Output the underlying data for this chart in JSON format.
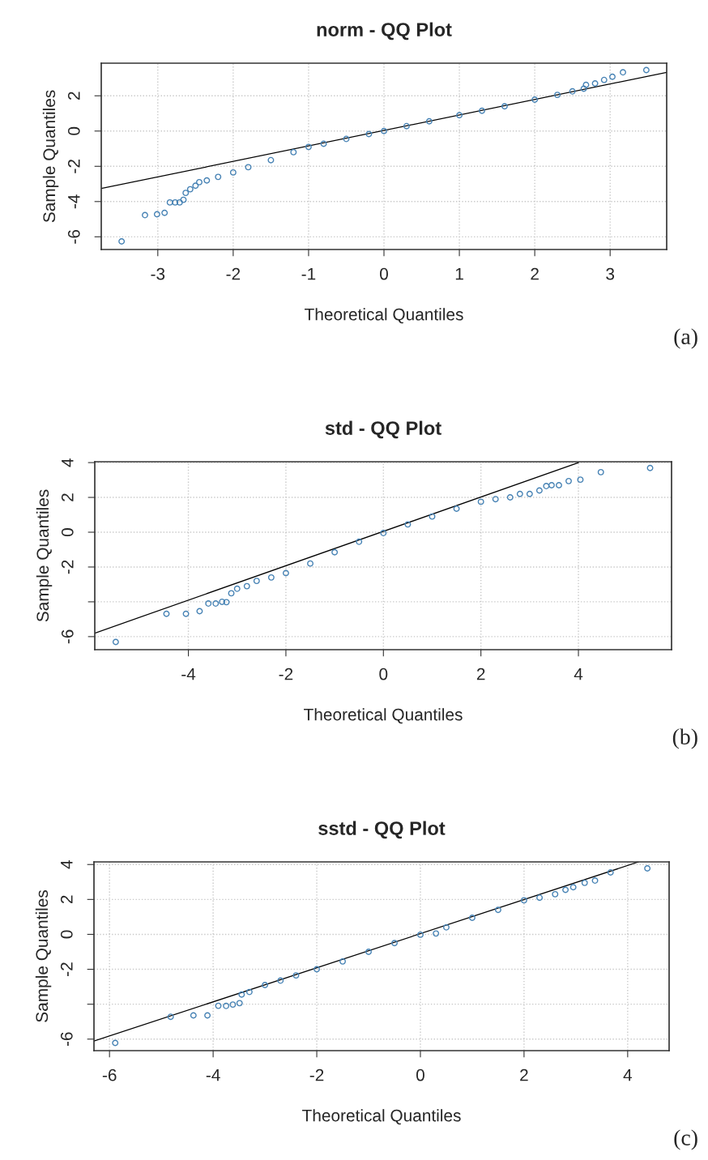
{
  "chart_data": [
    {
      "type": "scatter",
      "title": "norm - QQ Plot",
      "xlabel": "Theoretical Quantiles",
      "ylabel": "Sample Quantiles",
      "annotations": [
        "(a)"
      ],
      "xlim": [
        -3.75,
        3.75
      ],
      "ylim": [
        -6.72,
        3.85
      ],
      "xticks": [
        -3,
        -2,
        -1,
        0,
        1,
        2,
        3
      ],
      "yticks": [
        -6,
        -4,
        -2,
        0,
        2
      ],
      "grid": true,
      "series": [
        {
          "marker": "circle",
          "color": "#4682b4",
          "x": [
            -3.48,
            -3.17,
            -3.01,
            -2.91,
            -2.84,
            -2.77,
            -2.71,
            -2.66,
            -2.63,
            -2.57,
            -2.5,
            -2.45,
            -2.35,
            -2.2,
            -2.0,
            -1.8,
            -1.5,
            -1.2,
            -1.0,
            -0.8,
            -0.5,
            -0.2,
            0,
            0.3,
            0.6,
            1.0,
            1.3,
            1.6,
            2.0,
            2.3,
            2.5,
            2.65,
            2.68,
            2.8,
            2.92,
            3.03,
            3.17,
            3.48
          ],
          "values": [
            -6.26,
            -4.77,
            -4.72,
            -4.64,
            -4.05,
            -4.05,
            -4.05,
            -3.9,
            -3.51,
            -3.3,
            -3.1,
            -2.9,
            -2.8,
            -2.6,
            -2.35,
            -2.05,
            -1.65,
            -1.2,
            -0.9,
            -0.72,
            -0.45,
            -0.17,
            0,
            0.28,
            0.55,
            0.9,
            1.15,
            1.4,
            1.78,
            2.05,
            2.25,
            2.4,
            2.62,
            2.7,
            2.9,
            3.08,
            3.33,
            3.46
          ]
        },
        {
          "type": "line",
          "color": "#000000",
          "x": [
            -3.75,
            3.75
          ],
          "values": [
            -3.26,
            3.33
          ]
        }
      ]
    },
    {
      "type": "scatter",
      "title": "std - QQ Plot",
      "xlabel": "Theoretical Quantiles",
      "ylabel": "Sample Quantiles",
      "annotations": [
        "(b)"
      ],
      "xlim": [
        -5.92,
        5.91
      ],
      "ylim": [
        -6.75,
        4.05
      ],
      "xticks": [
        -4,
        -2,
        0,
        2,
        4
      ],
      "yticks": [
        -6,
        {
          "value": -4,
          "label": null
        },
        -2,
        0,
        2,
        4
      ],
      "grid": true,
      "series": [
        {
          "marker": "circle",
          "color": "#4682b4",
          "x": [
            -5.49,
            -4.45,
            -4.05,
            -3.77,
            -3.59,
            -3.44,
            -3.31,
            -3.22,
            -3.12,
            -3.0,
            -2.8,
            -2.6,
            -2.3,
            -2.0,
            -1.5,
            -1.0,
            -0.5,
            0,
            0.5,
            1.0,
            1.5,
            2.0,
            2.3,
            2.6,
            2.8,
            3.0,
            3.2,
            3.34,
            3.45,
            3.6,
            3.8,
            4.04,
            4.46,
            5.47
          ],
          "values": [
            -6.31,
            -4.69,
            -4.69,
            -4.54,
            -4.1,
            -4.1,
            -4.0,
            -4.02,
            -3.51,
            -3.25,
            -3.1,
            -2.8,
            -2.6,
            -2.35,
            -1.8,
            -1.15,
            -0.55,
            -0.05,
            0.45,
            0.9,
            1.35,
            1.75,
            1.9,
            2.0,
            2.2,
            2.2,
            2.4,
            2.65,
            2.7,
            2.7,
            2.94,
            3.02,
            3.45,
            3.69
          ]
        },
        {
          "type": "line",
          "color": "#000000",
          "x": [
            -5.92,
            4.0
          ],
          "values": [
            -5.8,
            4.0
          ]
        }
      ]
    },
    {
      "type": "scatter",
      "title": "sstd - QQ Plot",
      "xlabel": "Theoretical Quantiles",
      "ylabel": "Sample Quantiles",
      "annotations": [
        "(c)"
      ],
      "xlim": [
        -6.3,
        4.8
      ],
      "ylim": [
        -6.66,
        4.15
      ],
      "xticks": [
        -6,
        -4,
        -2,
        0,
        2,
        4
      ],
      "yticks": [
        -6,
        {
          "value": -4,
          "label": null
        },
        -2,
        0,
        2,
        4
      ],
      "grid": true,
      "series": [
        {
          "marker": "circle",
          "color": "#4682b4",
          "x": [
            -5.89,
            -4.82,
            -4.38,
            -4.11,
            -3.9,
            -3.75,
            -3.62,
            -3.49,
            -3.45,
            -3.3,
            -3.0,
            -2.7,
            -2.4,
            -2.0,
            -1.5,
            -1.0,
            -0.5,
            0,
            0.3,
            0.5,
            1.0,
            1.5,
            2.0,
            2.3,
            2.6,
            2.8,
            2.95,
            3.17,
            3.37,
            3.67,
            4.38
          ],
          "values": [
            -6.22,
            -4.72,
            -4.64,
            -4.64,
            -4.09,
            -4.1,
            -4.02,
            -3.94,
            -3.45,
            -3.3,
            -2.9,
            -2.65,
            -2.35,
            -2.0,
            -1.55,
            -1.0,
            -0.5,
            -0.02,
            0.05,
            0.4,
            0.95,
            1.4,
            1.95,
            2.1,
            2.3,
            2.55,
            2.7,
            2.95,
            3.08,
            3.55,
            3.78
          ]
        },
        {
          "type": "line",
          "color": "#000000",
          "x": [
            -6.3,
            4.21
          ],
          "values": [
            -6.11,
            4.15
          ]
        }
      ]
    }
  ]
}
